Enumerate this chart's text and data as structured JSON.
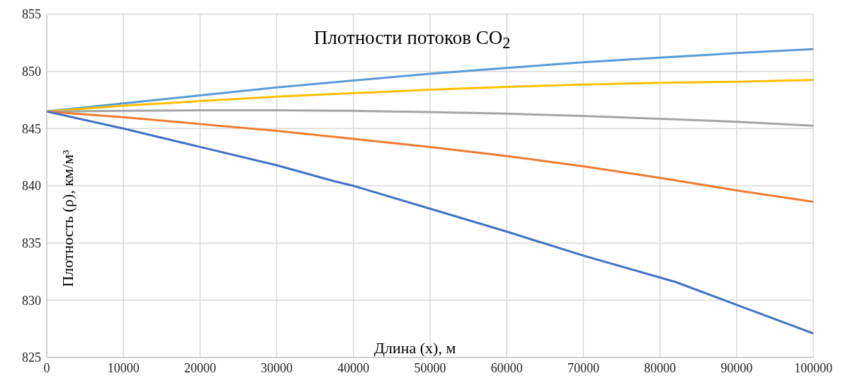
{
  "chart_data": {
    "type": "line",
    "title": "Плотности потоков CO$_{2}$",
    "xlabel": "Длина (x), м",
    "ylabel": "Плотность (ρ), км/м³",
    "x": [
      0,
      10000,
      20000,
      30000,
      40000,
      50000,
      60000,
      70000,
      80000,
      90000,
      100000
    ],
    "series": [
      {
        "color": "#5b9bd5",
        "values": [
          846.5,
          847.2,
          847.9,
          848.6,
          849.2,
          849.8,
          850.3,
          850.8,
          851.2,
          851.6,
          851.95
        ]
      },
      {
        "color": "#ffc000",
        "values": [
          846.5,
          847.0,
          847.4,
          847.8,
          848.1,
          848.4,
          848.65,
          848.85,
          849.0,
          849.1,
          849.25
        ]
      },
      {
        "color": "#a5a5a5",
        "values": [
          846.5,
          846.55,
          846.6,
          846.6,
          846.55,
          846.45,
          846.3,
          846.1,
          845.85,
          845.6,
          845.25
        ]
      },
      {
        "color": "#ed7d31",
        "values": [
          846.5,
          846.0,
          845.4,
          844.8,
          844.1,
          843.4,
          842.6,
          841.7,
          840.7,
          839.6,
          838.6
        ]
      },
      {
        "color": "#4472c4",
        "x": [
          0,
          10000,
          20000,
          30000,
          37500,
          40000,
          50000,
          60000,
          70000,
          82000,
          90000,
          100000
        ],
        "values": [
          846.5,
          845.0,
          843.4,
          841.8,
          840.4,
          840.0,
          838.0,
          836.0,
          833.9,
          831.6,
          829.6,
          827.1
        ]
      }
    ],
    "xlim": [
      0,
      100000
    ],
    "xticks": [
      0,
      10000,
      20000,
      30000,
      40000,
      50000,
      60000,
      70000,
      80000,
      90000,
      100000
    ],
    "ylim": [
      825,
      855
    ],
    "yticks": [
      825,
      830,
      835,
      840,
      845,
      850,
      855
    ],
    "grid": true,
    "legend": false,
    "marker": "none",
    "line_style": "solid"
  }
}
